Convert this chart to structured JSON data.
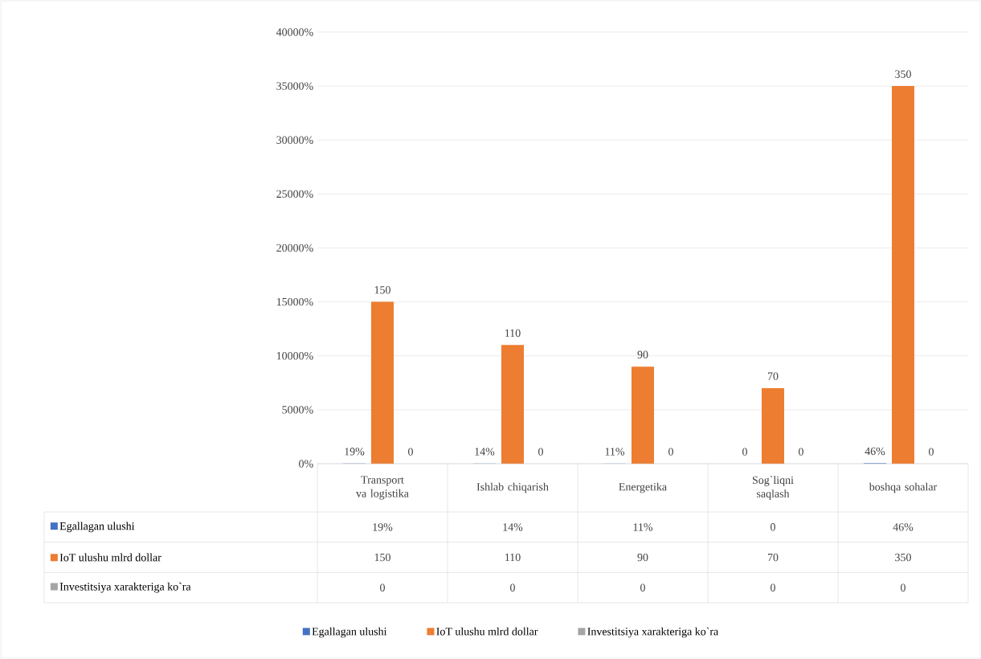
{
  "chart_data": {
    "type": "bar",
    "categories": [
      "Transport va logistika",
      "Ishlab chiqarish",
      "Energetika",
      "Sog`liqni saqlash",
      "boshqa sohalar"
    ],
    "series": [
      {
        "name": "Egallagan ulushi",
        "color": "#4472c4",
        "values": [
          0.19,
          0.14,
          0.11,
          0,
          0.46
        ],
        "value_labels": [
          "19%",
          "14%",
          "11%",
          "0",
          "46%"
        ]
      },
      {
        "name": "IoT ulushu mlrd dollar",
        "color": "#ed7d31",
        "values": [
          150,
          110,
          90,
          70,
          350
        ],
        "value_labels": [
          "150",
          "110",
          "90",
          "70",
          "350"
        ]
      },
      {
        "name": "Investitsiya xarakteriga ko`ra",
        "color": "#a5a5a5",
        "values": [
          0,
          0,
          0,
          0,
          0
        ],
        "value_labels": [
          "0",
          "0",
          "0",
          "0",
          "0"
        ]
      }
    ],
    "ylim": [
      0,
      400
    ],
    "yticks": [
      {
        "value": 0,
        "label": "0%"
      },
      {
        "value": 50,
        "label": "5000%"
      },
      {
        "value": 100,
        "label": "10000%"
      },
      {
        "value": 150,
        "label": "15000%"
      },
      {
        "value": 200,
        "label": "20000%"
      },
      {
        "value": 250,
        "label": "25000%"
      },
      {
        "value": 300,
        "label": "30000%"
      },
      {
        "value": 350,
        "label": "35000%"
      },
      {
        "value": 400,
        "label": "40000%"
      }
    ],
    "grid": "y",
    "legend": "bottom"
  }
}
